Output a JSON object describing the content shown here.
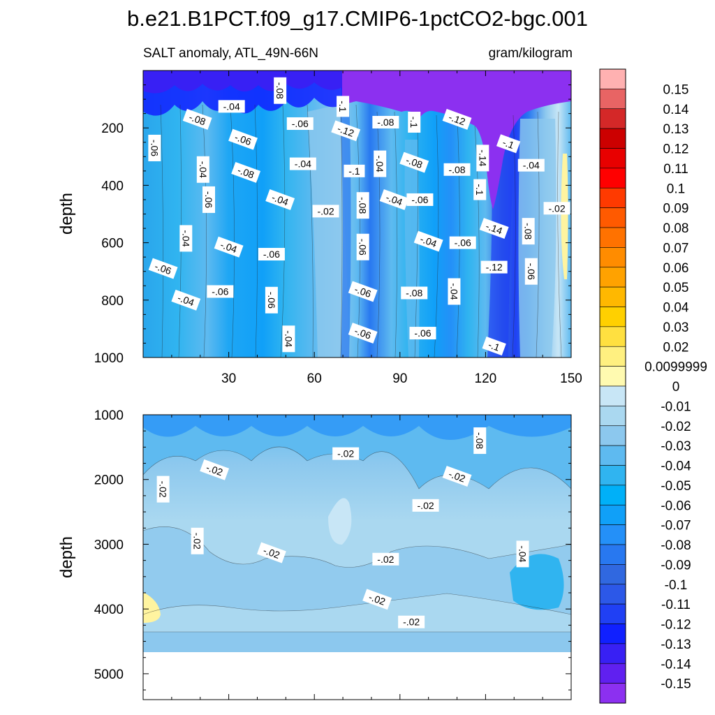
{
  "chart_data": {
    "type": "heatmap",
    "title": "b.e21.B1PCT.f09_g17.CMIP6-1pctCO2-bgc.001",
    "subtitle_left": "SALT anomaly, ATL_49N-66N",
    "subtitle_right": "gram/kilogram",
    "xlabel": "",
    "ylabel": "depth",
    "xlim": [
      0,
      150
    ],
    "x_ticks": [
      30,
      60,
      90,
      120,
      150
    ],
    "top_panel": {
      "ylim": [
        0,
        1000
      ],
      "y_ticks": [
        200,
        400,
        600,
        800,
        1000
      ],
      "contour_labels": [
        {
          "x": 4,
          "y": 270,
          "text": "-.06"
        },
        {
          "x": 19,
          "y": 170,
          "text": "-.08"
        },
        {
          "x": 31,
          "y": 125,
          "text": "-.04"
        },
        {
          "x": 48,
          "y": 70,
          "text": "-.08"
        },
        {
          "x": 35,
          "y": 240,
          "text": "-.06"
        },
        {
          "x": 55,
          "y": 185,
          "text": "-.06"
        },
        {
          "x": 21,
          "y": 345,
          "text": "-.04"
        },
        {
          "x": 36,
          "y": 355,
          "text": "-.08"
        },
        {
          "x": 56,
          "y": 325,
          "text": "-.04"
        },
        {
          "x": 70,
          "y": 125,
          "text": "-.1"
        },
        {
          "x": 71,
          "y": 210,
          "text": "-.12"
        },
        {
          "x": 85,
          "y": 180,
          "text": "-.08"
        },
        {
          "x": 95,
          "y": 180,
          "text": "-.1"
        },
        {
          "x": 110,
          "y": 170,
          "text": "-.12"
        },
        {
          "x": 74,
          "y": 350,
          "text": "-.1"
        },
        {
          "x": 83,
          "y": 325,
          "text": "-.04"
        },
        {
          "x": 95,
          "y": 320,
          "text": "-.08"
        },
        {
          "x": 110,
          "y": 345,
          "text": "-.08"
        },
        {
          "x": 119,
          "y": 305,
          "text": "-.14"
        },
        {
          "x": 128,
          "y": 255,
          "text": "-.1"
        },
        {
          "x": 136,
          "y": 330,
          "text": "-.04"
        },
        {
          "x": 23,
          "y": 450,
          "text": "-.06"
        },
        {
          "x": 48,
          "y": 450,
          "text": "-.04"
        },
        {
          "x": 64,
          "y": 490,
          "text": "-.02"
        },
        {
          "x": 77,
          "y": 470,
          "text": "-.08"
        },
        {
          "x": 88,
          "y": 450,
          "text": "-.04"
        },
        {
          "x": 97,
          "y": 450,
          "text": "-.06"
        },
        {
          "x": 118,
          "y": 415,
          "text": "-.1"
        },
        {
          "x": 123,
          "y": 550,
          "text": "-.14"
        },
        {
          "x": 145,
          "y": 480,
          "text": "-.02"
        },
        {
          "x": 15,
          "y": 585,
          "text": "-.04"
        },
        {
          "x": 30,
          "y": 615,
          "text": "-.04"
        },
        {
          "x": 45,
          "y": 640,
          "text": "-.06"
        },
        {
          "x": 77,
          "y": 615,
          "text": "-.06"
        },
        {
          "x": 100,
          "y": 595,
          "text": "-.04"
        },
        {
          "x": 112,
          "y": 600,
          "text": "-.06"
        },
        {
          "x": 135,
          "y": 560,
          "text": "-.08"
        },
        {
          "x": 7,
          "y": 690,
          "text": "-.06"
        },
        {
          "x": 123,
          "y": 685,
          "text": "-.12"
        },
        {
          "x": 136,
          "y": 700,
          "text": "-.06"
        },
        {
          "x": 15,
          "y": 800,
          "text": "-.04"
        },
        {
          "x": 27,
          "y": 770,
          "text": "-.06"
        },
        {
          "x": 45,
          "y": 800,
          "text": "-.06"
        },
        {
          "x": 77,
          "y": 770,
          "text": "-.06"
        },
        {
          "x": 95,
          "y": 775,
          "text": "-.08"
        },
        {
          "x": 109,
          "y": 770,
          "text": "-.04"
        },
        {
          "x": 77,
          "y": 915,
          "text": "-.06"
        },
        {
          "x": 98,
          "y": 915,
          "text": "-.06"
        },
        {
          "x": 51,
          "y": 935,
          "text": "-.04"
        },
        {
          "x": 123,
          "y": 960,
          "text": "-.1"
        }
      ]
    },
    "bottom_panel": {
      "ylim": [
        1000,
        5400
      ],
      "y_ticks": [
        1000,
        2000,
        3000,
        4000,
        5000
      ],
      "contour_labels": [
        {
          "x": 7,
          "y": 2150,
          "text": "-.02"
        },
        {
          "x": 25,
          "y": 1850,
          "text": "-.02"
        },
        {
          "x": 71,
          "y": 1600,
          "text": "-.02"
        },
        {
          "x": 118,
          "y": 1400,
          "text": "-.08"
        },
        {
          "x": 110,
          "y": 1950,
          "text": "-.02"
        },
        {
          "x": 99,
          "y": 2400,
          "text": "-.02"
        },
        {
          "x": 19,
          "y": 2950,
          "text": "-.02"
        },
        {
          "x": 45,
          "y": 3130,
          "text": "-.02"
        },
        {
          "x": 85,
          "y": 3230,
          "text": "-.02"
        },
        {
          "x": 133,
          "y": 3150,
          "text": "-.04"
        },
        {
          "x": 82,
          "y": 3850,
          "text": "-.02"
        },
        {
          "x": 94,
          "y": 4200,
          "text": "-.02"
        }
      ]
    },
    "colorbar": {
      "levels": [
        "0.15",
        "0.14",
        "0.13",
        "0.12",
        "0.11",
        "0.1",
        "0.09",
        "0.08",
        "0.07",
        "0.06",
        "0.05",
        "0.04",
        "0.03",
        "0.02",
        "0.0099999",
        "0",
        "-0.01",
        "-0.02",
        "-0.03",
        "-0.04",
        "-0.05",
        "-0.06",
        "-0.07",
        "-0.08",
        "-0.09",
        "-0.1",
        "-0.11",
        "-0.12",
        "-0.13",
        "-0.14",
        "-0.15"
      ],
      "colors": [
        "#ffb1b1",
        "#e86464",
        "#d42828",
        "#cc0000",
        "#e80000",
        "#ff0000",
        "#ff3a00",
        "#ff5a00",
        "#ff7200",
        "#ff8c00",
        "#ffa200",
        "#ffb800",
        "#ffd000",
        "#ffe040",
        "#fff080",
        "#fffab0",
        "#c8e6f6",
        "#aad8f0",
        "#8cc8ee",
        "#5ebaf0",
        "#30b4f0",
        "#00b0f8",
        "#10a0f8",
        "#2490f8",
        "#2878f0",
        "#3068e0",
        "#2c58e8",
        "#2040f4",
        "#1020ff",
        "#3820f4",
        "#6020f0",
        "#8c30f0"
      ]
    }
  }
}
